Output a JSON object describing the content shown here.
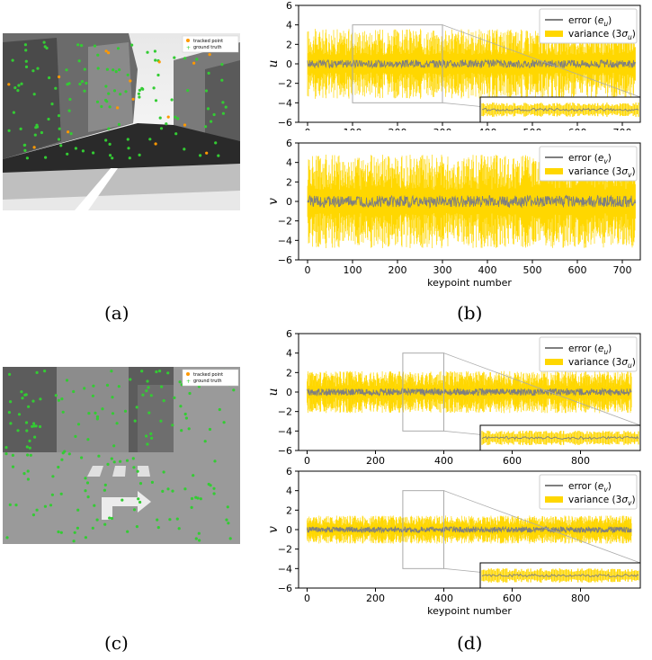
{
  "captions": {
    "a": "(a)",
    "b": "(b)",
    "c": "(c)",
    "d": "(d)"
  },
  "photo_legend": {
    "tracked": "tracked point",
    "truth": "ground truth"
  },
  "colors": {
    "error": "#7f7f7f",
    "variance": "#ffd700",
    "tracked": "#ff9900",
    "truth": "#33cc33",
    "inset_box": "#aaaaaa"
  },
  "chart_data": [
    {
      "id": "b-top",
      "type": "line",
      "ylabel": "u",
      "xlabel": "",
      "xlim": [
        -20,
        740
      ],
      "ylim": [
        -6,
        6
      ],
      "xticks": [
        0,
        100,
        200,
        300,
        400,
        500,
        600,
        700
      ],
      "yticks": [
        6,
        4,
        2,
        0,
        -2,
        -4,
        -6
      ],
      "n_points": 730,
      "zoom_range": [
        100,
        300
      ],
      "series": [
        {
          "name": "error (e_u)",
          "legend_main": "error (",
          "legend_sym": "e",
          "legend_sub": "u",
          "legend_end": ")",
          "error_amp": 0.4,
          "var_amp": 3.0
        },
        {
          "name": "variance (3σ_u)",
          "legend_main": "variance (3",
          "legend_sym": "σ",
          "legend_sub": "u",
          "legend_end": ")"
        }
      ]
    },
    {
      "id": "b-bottom",
      "type": "line",
      "ylabel": "v",
      "xlabel": "keypoint number",
      "xlim": [
        -20,
        740
      ],
      "ylim": [
        -6,
        6
      ],
      "xticks": [
        0,
        100,
        200,
        300,
        400,
        500,
        600,
        700
      ],
      "yticks": [
        6,
        4,
        2,
        0,
        -2,
        -4,
        -6
      ],
      "n_points": 730,
      "series": [
        {
          "name": "error (e_v)",
          "legend_main": "error (",
          "legend_sym": "e",
          "legend_sub": "v",
          "legend_end": ")",
          "error_amp": 0.6,
          "var_amp": 4.0
        },
        {
          "name": "variance (3σ_v)",
          "legend_main": "variance (3",
          "legend_sym": "σ",
          "legend_sub": "v",
          "legend_end": ")"
        }
      ]
    },
    {
      "id": "d-top",
      "type": "line",
      "ylabel": "u",
      "xlabel": "",
      "xlim": [
        -25,
        975
      ],
      "ylim": [
        -6,
        6
      ],
      "xticks": [
        0,
        200,
        400,
        600,
        800
      ],
      "yticks": [
        6,
        4,
        2,
        0,
        -2,
        -4,
        -6
      ],
      "n_points": 950,
      "zoom_range": [
        280,
        400
      ],
      "series": [
        {
          "name": "error (e_u)",
          "legend_main": "error (",
          "legend_sym": "e",
          "legend_sub": "u",
          "legend_end": ")",
          "error_amp": 0.35,
          "var_amp": 1.8
        },
        {
          "name": "variance (3σ_u)",
          "legend_main": "variance (3",
          "legend_sym": "σ",
          "legend_sub": "u",
          "legend_end": ")"
        }
      ]
    },
    {
      "id": "d-bottom",
      "type": "line",
      "ylabel": "v",
      "xlabel": "keypoint number",
      "xlim": [
        -25,
        975
      ],
      "ylim": [
        -6,
        6
      ],
      "xticks": [
        0,
        200,
        400,
        600,
        800
      ],
      "yticks": [
        6,
        4,
        2,
        0,
        -2,
        -4,
        -6
      ],
      "n_points": 950,
      "zoom_range": [
        280,
        400
      ],
      "series": [
        {
          "name": "error (e_v)",
          "legend_main": "error (",
          "legend_sym": "e",
          "legend_sub": "v",
          "legend_end": ")",
          "error_amp": 0.3,
          "var_amp": 1.2
        },
        {
          "name": "variance (3σ_v)",
          "legend_main": "variance (3",
          "legend_sym": "σ",
          "legend_sub": "v",
          "legend_end": ")"
        }
      ]
    }
  ]
}
